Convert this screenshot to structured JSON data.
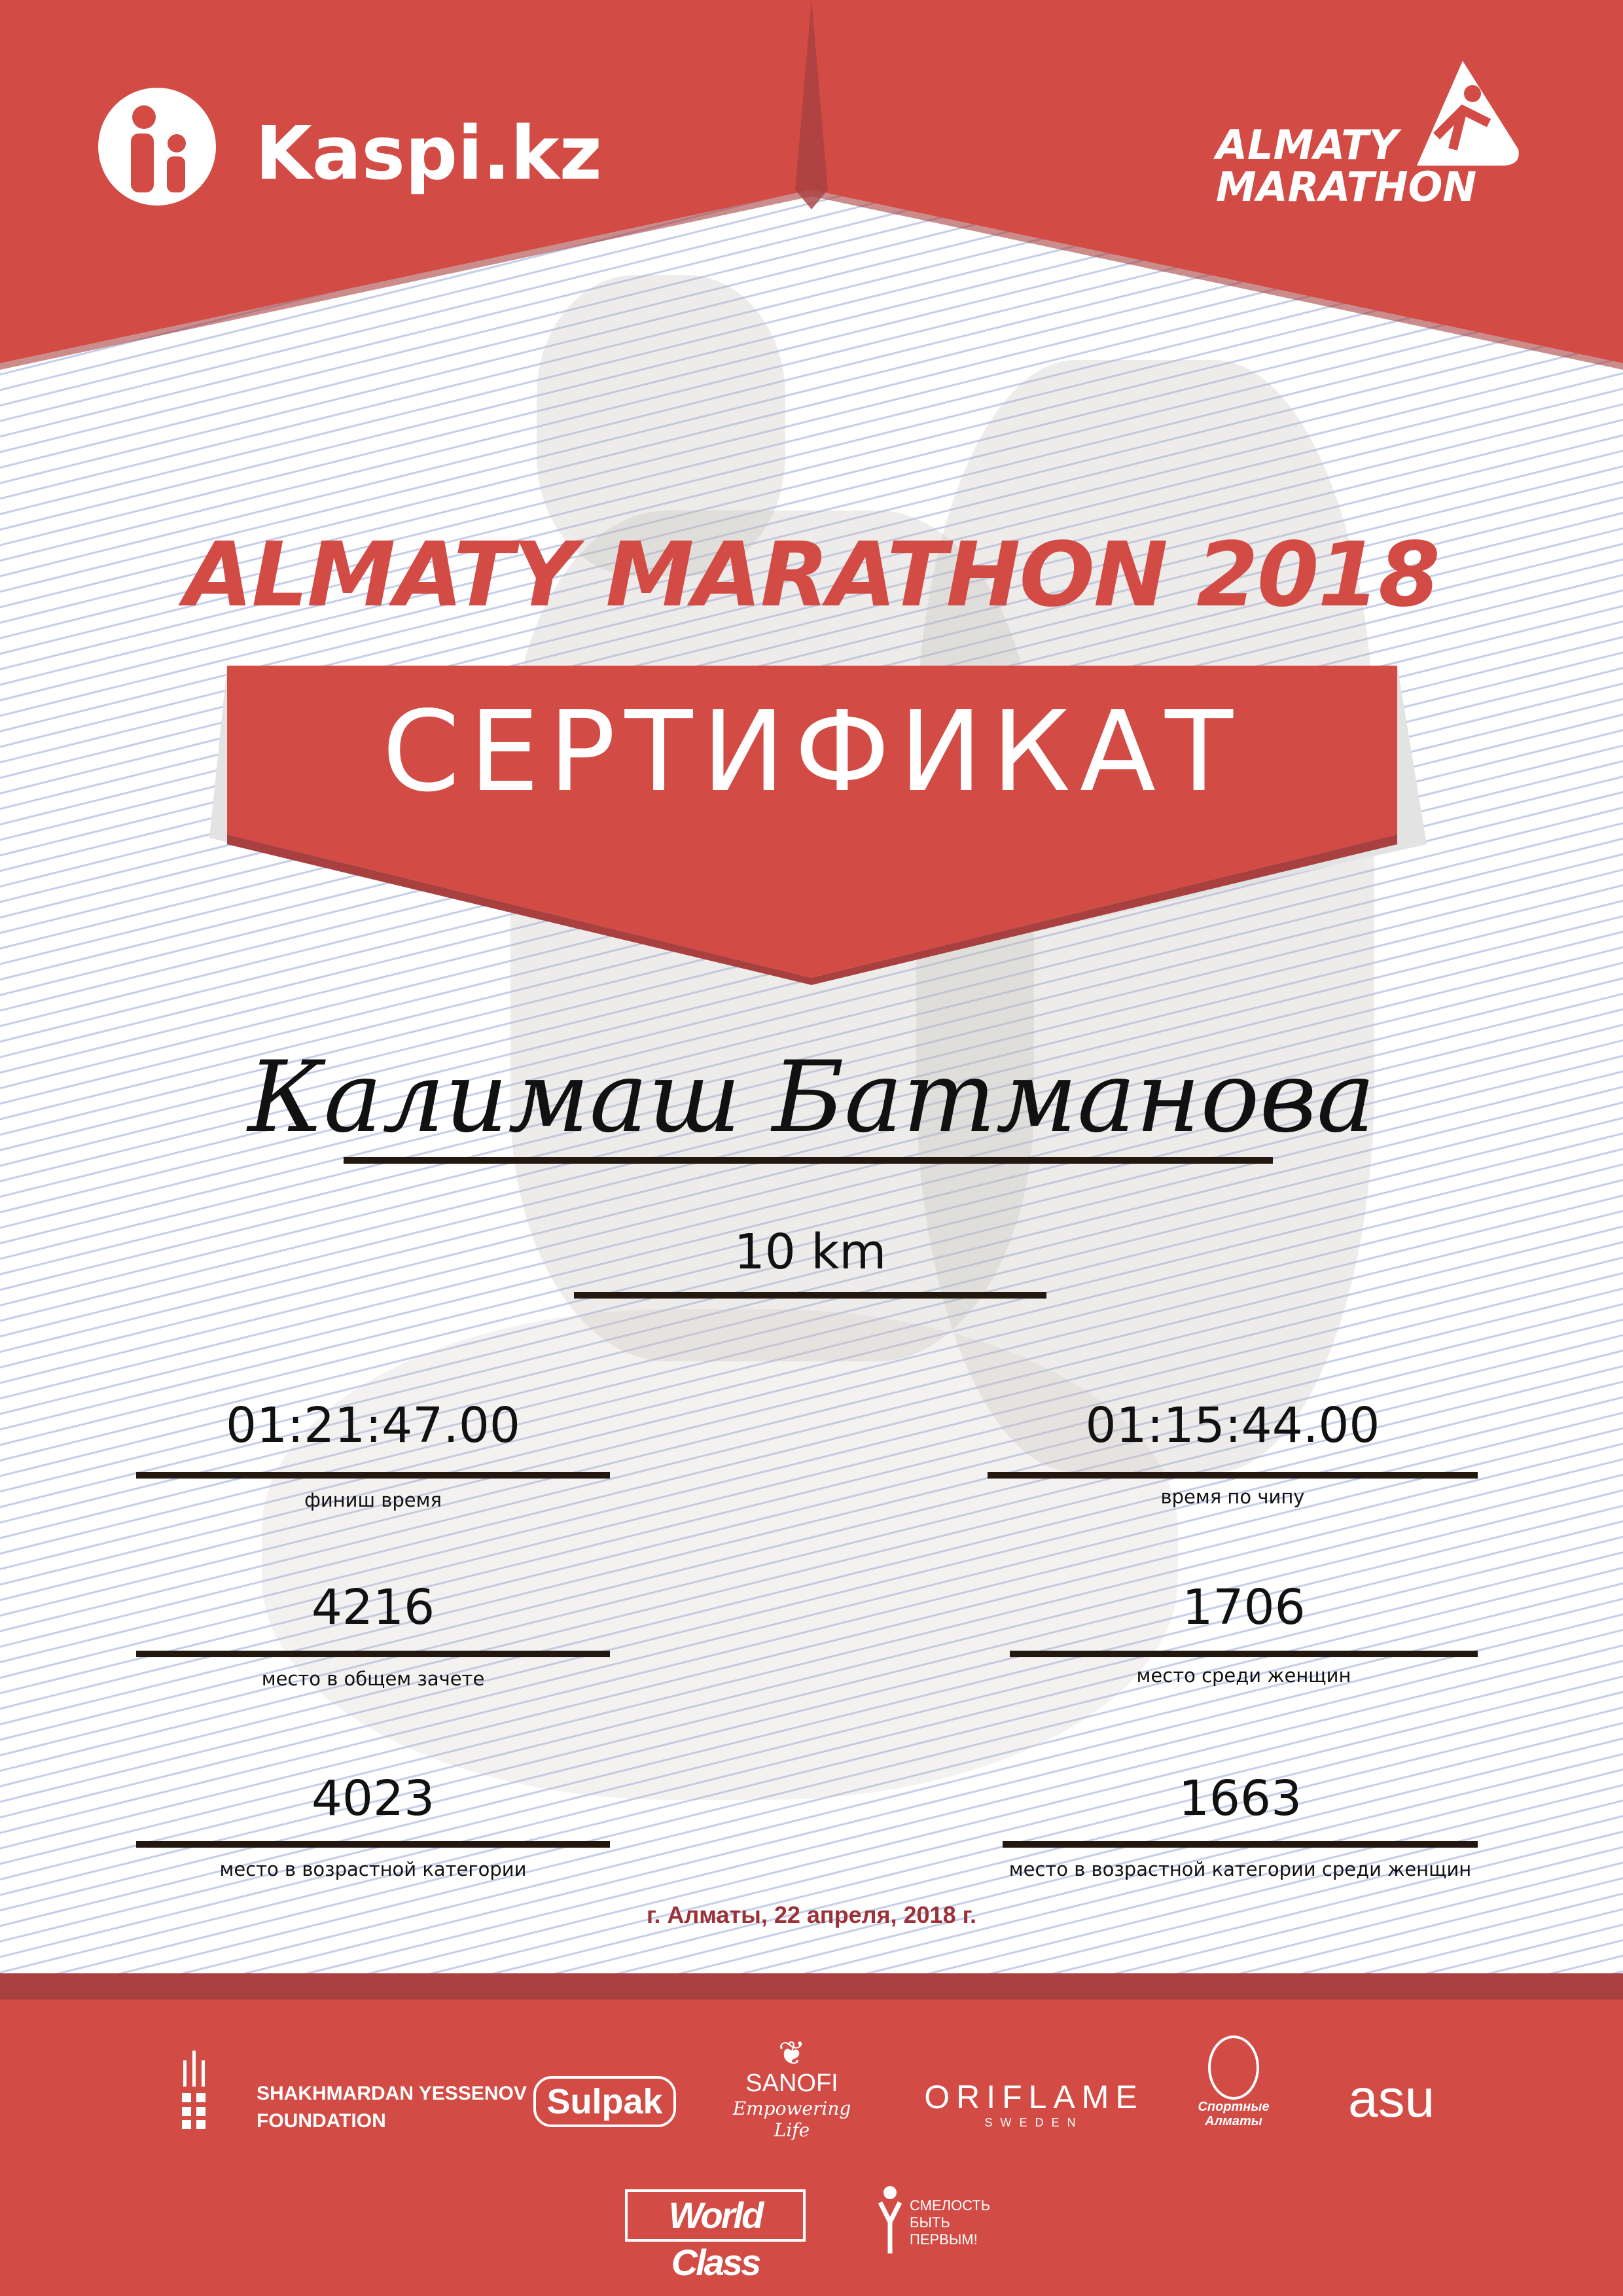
{
  "colors": {
    "brand_red": "#d24b45",
    "dark_red": "#a84040",
    "date_red": "#9b3238"
  },
  "header": {
    "left_logo": "Kaspi.kz",
    "right_logo": {
      "line1": "ALMATY",
      "line2": "MARATHON"
    }
  },
  "title": "ALMATY MARATHON 2018",
  "certificate_label": "СЕРТИФИКАТ",
  "participant_name": "Калимаш Батманова",
  "distance": "10 km",
  "results": {
    "finish_time": {
      "value": "01:21:47.00",
      "label": "финиш время"
    },
    "chip_time": {
      "value": "01:15:44.00",
      "label": "время по чипу"
    },
    "overall_place": {
      "value": "4216",
      "label": "место в общем зачете"
    },
    "women_place": {
      "value": "1706",
      "label": "место среди женщин"
    },
    "age_place": {
      "value": "4023",
      "label": "место в возрастной категории"
    },
    "age_women_place": {
      "value": "1663",
      "label": "место в возрастной категории среди женщин"
    }
  },
  "date_line": "г. Алматы, 22 апреля, 2018 г.",
  "sponsors": {
    "yessenov": {
      "line1": "SHAKHMARDAN YESSENOV",
      "line2": "FOUNDATION"
    },
    "sulpak": "Sulpak",
    "sanofi": {
      "name": "SANOFI",
      "tagline": "Empowering Life"
    },
    "oriflame": {
      "name": "ORIFLAME",
      "sub": "SWEDEN"
    },
    "sport_almaty": {
      "line1": "Спортные",
      "line2": "Алматы"
    },
    "asu": "asu",
    "worldclass": "World Class",
    "smelost": {
      "line1": "СМЕЛОСТЬ",
      "line2": "БЫТЬ",
      "line3": "ПЕРВЫМ!"
    }
  }
}
